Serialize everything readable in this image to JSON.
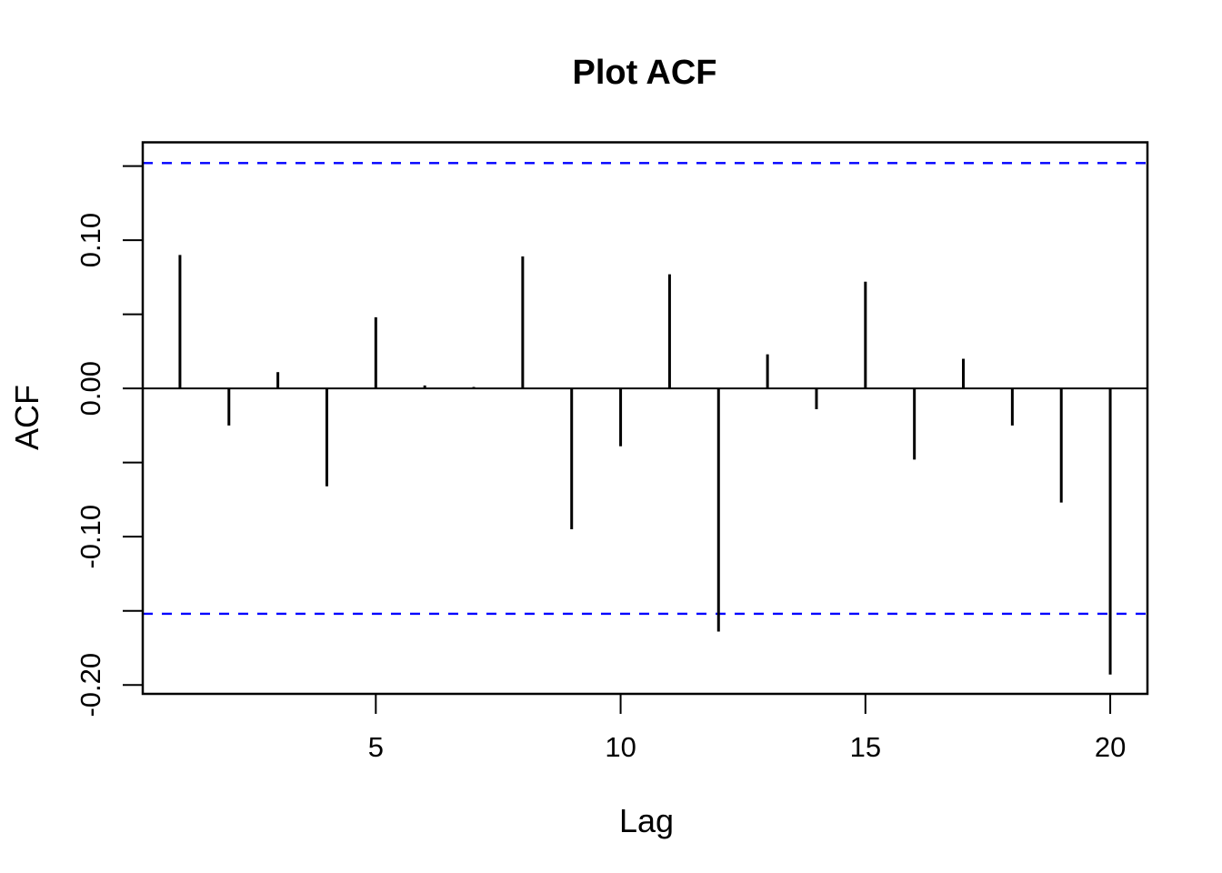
{
  "figure": {
    "background": "#ffffff"
  },
  "chart_data": {
    "type": "bar",
    "subtype": "acf-stick-plot",
    "title": "Plot ACF",
    "xlabel": "Lag",
    "ylabel": "ACF",
    "x": [
      1,
      2,
      3,
      4,
      5,
      6,
      7,
      8,
      9,
      10,
      11,
      12,
      13,
      14,
      15,
      16,
      17,
      18,
      19,
      20
    ],
    "values": [
      0.09,
      -0.025,
      0.011,
      -0.066,
      0.048,
      0.002,
      0.001,
      0.089,
      -0.095,
      -0.039,
      0.077,
      -0.164,
      0.023,
      -0.014,
      0.072,
      -0.048,
      0.02,
      -0.025,
      -0.077,
      -0.193
    ],
    "zero_line": 0,
    "conf_limits": [
      -0.152,
      0.152
    ],
    "conf_line_style": "dashed",
    "conf_line_color": "#0000ff",
    "bar_color": "#000000",
    "axis_color": "#000000",
    "xlim": [
      0.24,
      20.76
    ],
    "ylim": [
      -0.206,
      0.166
    ],
    "grid": false,
    "legend": null,
    "x_ticks": [
      {
        "value": 5,
        "label": "5"
      },
      {
        "value": 10,
        "label": "10"
      },
      {
        "value": 15,
        "label": "15"
      },
      {
        "value": 20,
        "label": "20"
      }
    ],
    "y_ticks": [
      {
        "value": 0.15,
        "label": ""
      },
      {
        "value": 0.1,
        "label": "0.10"
      },
      {
        "value": 0.05,
        "label": ""
      },
      {
        "value": 0.0,
        "label": "0.00"
      },
      {
        "value": -0.05,
        "label": ""
      },
      {
        "value": -0.1,
        "label": "-0.10"
      },
      {
        "value": -0.15,
        "label": ""
      },
      {
        "value": -0.2,
        "label": "-0.20"
      }
    ]
  }
}
